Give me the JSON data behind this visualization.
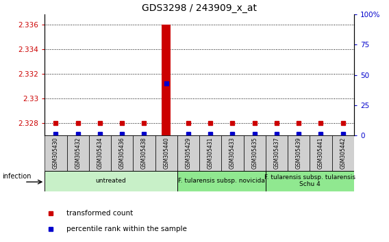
{
  "title": "GDS3298 / 243909_x_at",
  "samples": [
    "GSM305430",
    "GSM305432",
    "GSM305434",
    "GSM305436",
    "GSM305438",
    "GSM305440",
    "GSM305429",
    "GSM305431",
    "GSM305433",
    "GSM305435",
    "GSM305437",
    "GSM305439",
    "GSM305441",
    "GSM305442"
  ],
  "transformed_count": [
    2.328,
    2.328,
    2.328,
    2.328,
    2.328,
    2.336,
    2.328,
    2.328,
    2.328,
    2.328,
    2.328,
    2.328,
    2.328,
    2.328
  ],
  "percentile_rank": [
    1.0,
    1.0,
    1.0,
    1.0,
    1.0,
    43.0,
    1.0,
    1.0,
    1.0,
    1.0,
    1.0,
    1.0,
    1.0,
    1.0
  ],
  "ylim_left": [
    2.327,
    2.3368
  ],
  "ylim_right": [
    0,
    100
  ],
  "yticks_left": [
    2.328,
    2.33,
    2.332,
    2.334,
    2.336
  ],
  "yticks_right": [
    0,
    25,
    50,
    75,
    100
  ],
  "group_spans": [
    {
      "start": 0,
      "end": 5,
      "label": "untreated",
      "color": "#c8f0c8"
    },
    {
      "start": 6,
      "end": 9,
      "label": "F. tularensis subsp. novicida",
      "color": "#90e890"
    },
    {
      "start": 10,
      "end": 13,
      "label": "F. tularensis subsp. tularensis\nSchu 4",
      "color": "#90e890"
    }
  ],
  "infection_label": "infection",
  "legend_items": [
    {
      "label": "transformed count",
      "color": "#cc0000"
    },
    {
      "label": "percentile rank within the sample",
      "color": "#0000cc"
    }
  ],
  "bar_color": "#cc0000",
  "dot_color": "#0000cc",
  "tick_color_left": "#cc0000",
  "tick_color_right": "#0000cc",
  "background_color": "white",
  "sample_bar_color": "#d0d0d0",
  "title_fontsize": 10,
  "tick_fontsize": 7.5,
  "sample_fontsize": 5.5,
  "group_fontsize": 6.5,
  "legend_fontsize": 7.5
}
